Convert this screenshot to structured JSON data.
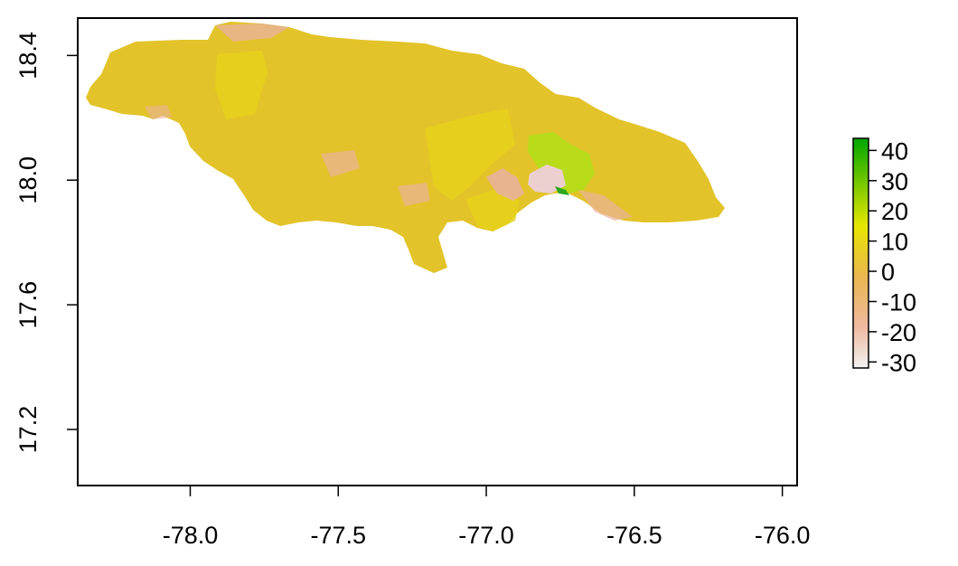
{
  "map": {
    "x_ticks": [
      "-78.0",
      "-77.5",
      "-77.0",
      "-76.5",
      "-76.0"
    ],
    "y_ticks": [
      "17.2",
      "17.6",
      "18.0",
      "18.4"
    ],
    "x_range": [
      -78.38,
      -75.95
    ],
    "y_range": [
      17.02,
      18.52
    ],
    "x_tick_values": [
      -78.0,
      -77.5,
      -77.0,
      -76.5,
      -76.0
    ],
    "y_tick_values": [
      17.2,
      17.6,
      18.0,
      18.4
    ]
  },
  "legend": {
    "labels": [
      "40",
      "30",
      "20",
      "10",
      "0",
      "-10",
      "-20",
      "-30"
    ],
    "values": [
      40,
      30,
      20,
      10,
      0,
      -10,
      -20,
      -30
    ],
    "range": [
      -32,
      44
    ],
    "colors": [
      "#00A600",
      "#E6E600",
      "#EAB64E",
      "#EEB99F",
      "#F2F2F2"
    ]
  },
  "colors": {
    "land_base": "#E3C32A",
    "land_yellow": "#E6D21A",
    "land_pink": "#E8B39A",
    "land_green": "#B8DB1A",
    "land_dark_green": "#2FA81E"
  }
}
